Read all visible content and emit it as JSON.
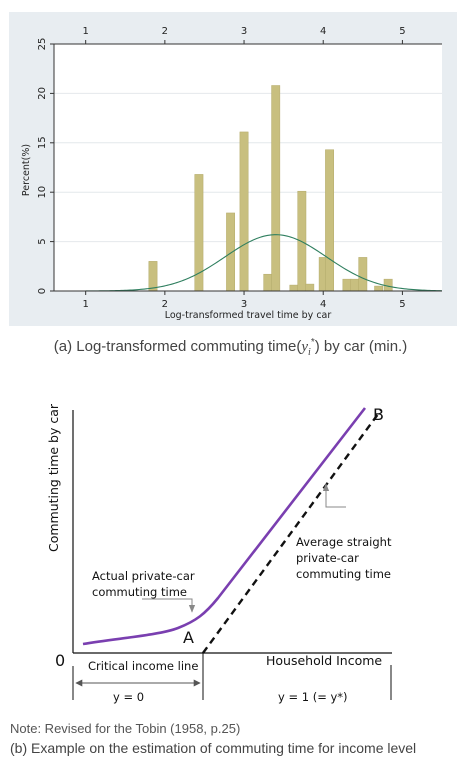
{
  "figure_a": {
    "caption_prefix": "(a) Log-transformed commuting time(",
    "caption_var": "y",
    "caption_sub": "i",
    "caption_sup": "*",
    "caption_suffix": ") by car (min.)"
  },
  "figure_b": {
    "y_axis_title": "Commuting time by car",
    "x_axis_title": "Household Income",
    "origin_label": "0",
    "point_a": "A",
    "point_b": "B",
    "actual_line_1": "Actual private-car",
    "actual_line_2": "commuting time",
    "average_line_1": "Average straight",
    "average_line_2": "private-car",
    "average_line_3": "commuting time",
    "critical_label": "Critical income line",
    "y0_label": "y = 0",
    "y1_label": "y = 1 (= y*)",
    "colors": {
      "actual": "#7a3fb0",
      "average": "#111111"
    }
  },
  "note": "Note: Revised for the Tobin (1958, p.25)",
  "caption_b": "(b) Example on the estimation of commuting time for income level",
  "chart_data": {
    "type": "bar",
    "xlabel": "Log-transformed travel time by car",
    "ylabel": "Percent(%)",
    "xlim": [
      0.6,
      5.5
    ],
    "ylim": [
      0,
      25
    ],
    "xticks": [
      1,
      2,
      3,
      4,
      5
    ],
    "yticks": [
      0,
      5,
      10,
      15,
      20,
      25
    ],
    "top_axis_ticks": [
      1,
      2,
      3,
      4,
      5
    ],
    "bin_width": 0.105,
    "bars": [
      {
        "x": 1.85,
        "value": 3.0
      },
      {
        "x": 2.43,
        "value": 11.8
      },
      {
        "x": 2.83,
        "value": 7.9
      },
      {
        "x": 3.0,
        "value": 16.1
      },
      {
        "x": 3.3,
        "value": 1.7
      },
      {
        "x": 3.4,
        "value": 20.8
      },
      {
        "x": 3.63,
        "value": 0.6
      },
      {
        "x": 3.73,
        "value": 10.1
      },
      {
        "x": 3.83,
        "value": 0.7
      },
      {
        "x": 4.0,
        "value": 3.4
      },
      {
        "x": 4.08,
        "value": 14.3
      },
      {
        "x": 4.3,
        "value": 1.2
      },
      {
        "x": 4.4,
        "value": 1.2
      },
      {
        "x": 4.5,
        "value": 3.4
      },
      {
        "x": 4.7,
        "value": 0.5
      },
      {
        "x": 4.82,
        "value": 1.2
      }
    ],
    "normal_curve": {
      "mean": 3.4,
      "sd": 0.64,
      "peak": 5.7,
      "xrange": [
        1.0,
        5.5
      ]
    },
    "colors": {
      "bar": "#c8bf7f",
      "bar_edge": "#b3aa6a",
      "curve": "#2f7f5f",
      "panel": "#e8edf1",
      "plot_bg": "#ffffff"
    },
    "grid": true
  }
}
